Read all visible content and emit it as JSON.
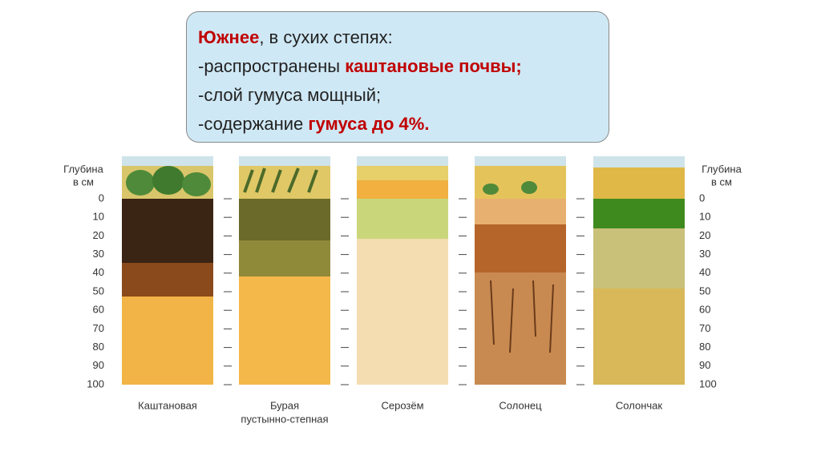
{
  "text_box": {
    "line1": {
      "highlight": "Южнее",
      "rest": ", в сухих степях:"
    },
    "line2": {
      "plain": "-распространены ",
      "highlight": "каштановые почвы;"
    },
    "line3": "-слой гумуса мощный;",
    "line4": {
      "plain": "-содержание ",
      "highlight": "гумуса до 4%."
    }
  },
  "depth_scale": {
    "title_lines": [
      "Глубина",
      "в см"
    ],
    "ticks": [
      0,
      10,
      20,
      30,
      40,
      50,
      60,
      70,
      80,
      90,
      100
    ]
  },
  "soils": [
    {
      "name_lines": [
        "Каштановая"
      ]
    },
    {
      "name_lines": [
        "Бурая",
        "пустынно-степная"
      ]
    },
    {
      "name_lines": [
        "Серозём"
      ]
    },
    {
      "name_lines": [
        "Солонец"
      ]
    },
    {
      "name_lines": [
        "Солончак"
      ]
    }
  ]
}
